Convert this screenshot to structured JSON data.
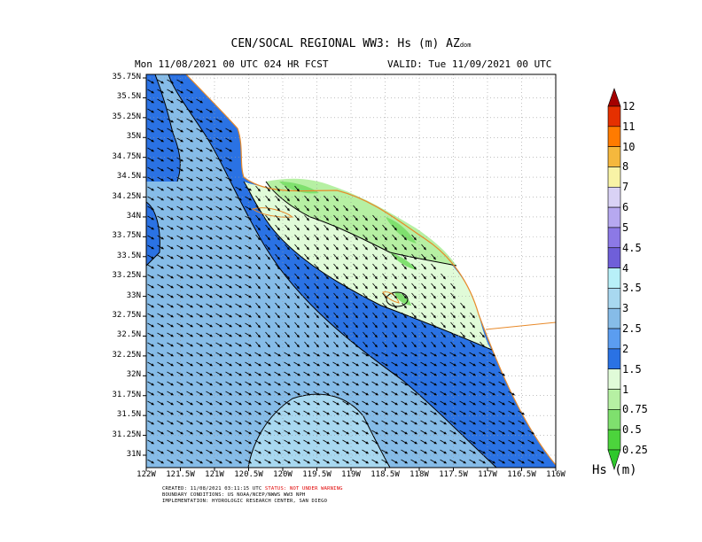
{
  "title_line1": "CEN/SOCAL REGIONAL WW3: Hs (m) AZ",
  "title_sub": "dom",
  "title_left": "Mon 11/08/2021 00 UTC 024 HR FCST",
  "title_right": "VALID: Tue 11/09/2021 00 UTC",
  "lat_labels": [
    "35.75N",
    "35.5N",
    "35.25N",
    "35N",
    "34.75N",
    "34.5N",
    "34.25N",
    "34N",
    "33.75N",
    "33.5N",
    "33.25N",
    "33N",
    "32.75N",
    "32.5N",
    "32.25N",
    "32N",
    "31.75N",
    "31.5N",
    "31.25N",
    "31N"
  ],
  "lon_labels": [
    "122W",
    "121.5W",
    "121W",
    "120.5W",
    "120W",
    "119.5W",
    "119W",
    "118.5W",
    "118W",
    "117.5W",
    "117W",
    "116.5W",
    "116W"
  ],
  "colorbar": {
    "labels": [
      "12",
      "11",
      "10",
      "8",
      "7",
      "6",
      "5",
      "4.5",
      "4",
      "3.5",
      "3",
      "2.5",
      "2",
      "1.5",
      "1",
      "0.75",
      "0.5",
      "0.25"
    ],
    "colors": [
      "#a50000",
      "#e53000",
      "#ff7b00",
      "#f5b83d",
      "#f8f3a6",
      "#d9d2f5",
      "#b6a8f0",
      "#8c79e6",
      "#6f5fd9",
      "#b8f0f8",
      "#a8d8f0",
      "#86bce8",
      "#5b9df0",
      "#2a72e4",
      "#e0fbd8",
      "#b6f0a3",
      "#7fe06e",
      "#4cd43c",
      "#2ec82c"
    ],
    "unit_label": "Hs (m)"
  },
  "credits": {
    "created": "CREATED: 11/08/2021 03:11:15 UTC",
    "status": "STATUS: NOT UNDER WARNING",
    "boundary": "BOUNDARY CONDITIONS: US NOAA/NCEP/NWWS WW3 NPH",
    "implementation": "IMPLEMENTATION: HYDROLOGIC RESEARCH CENTER, SAN DIEGO"
  }
}
